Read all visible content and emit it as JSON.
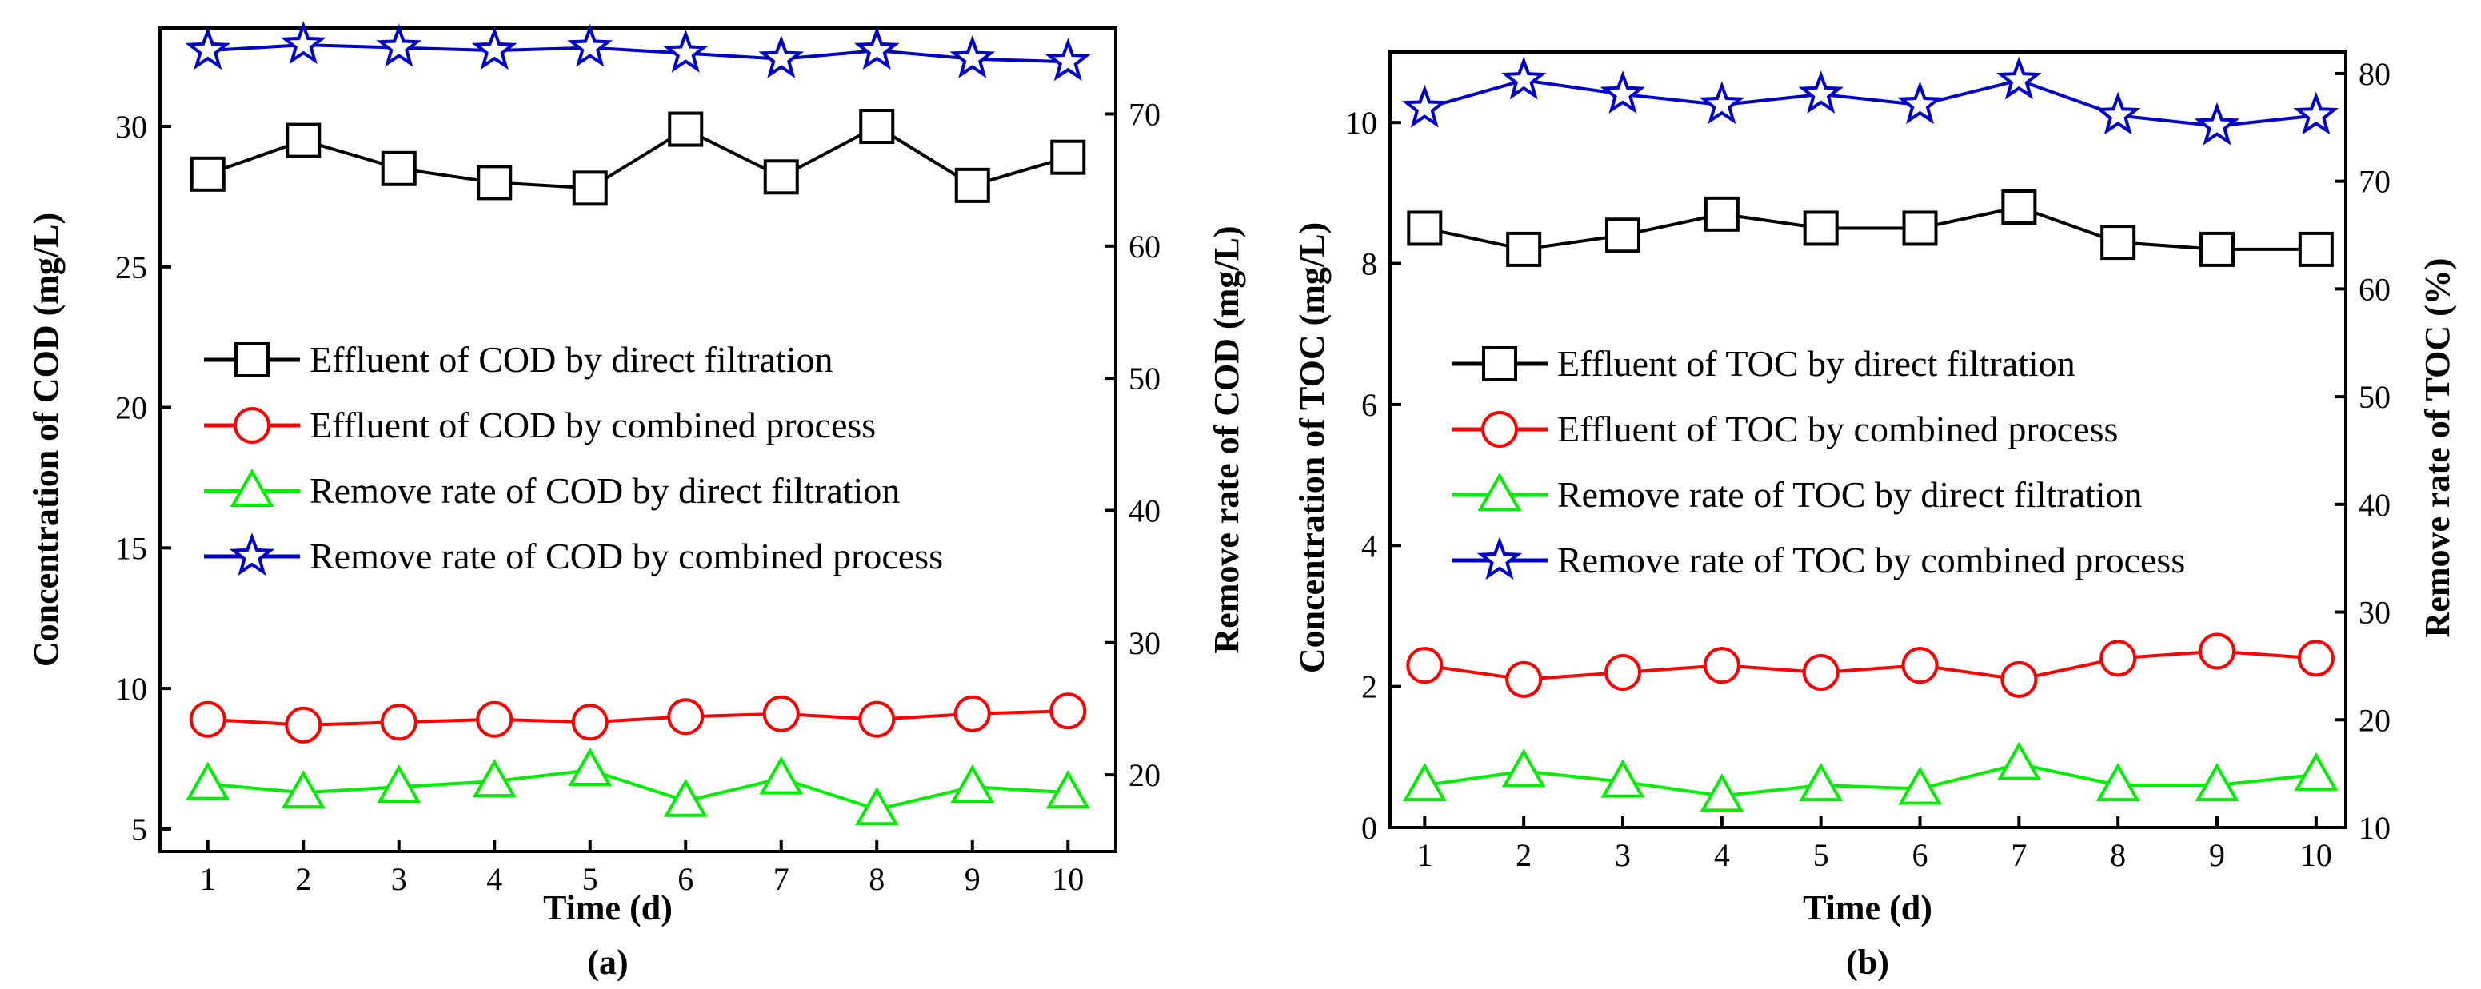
{
  "colors": {
    "direct_effluent": "#000000",
    "combined_effluent": "#ff0000",
    "direct_remove": "#00ee00",
    "combined_remove": "#0000cc"
  },
  "chart_data": [
    {
      "panel": "(a)",
      "type": "line",
      "xlabel": "Time (d)",
      "ylabel_left": "Concentration of COD (mg/L)",
      "ylabel_right": "Remove rate of COD (mg/L)",
      "x": [
        1,
        2,
        3,
        4,
        5,
        6,
        7,
        8,
        9,
        10
      ],
      "xlim": [
        0.5,
        10.5
      ],
      "ylim_left": [
        4.2,
        33.5
      ],
      "ylim_right": [
        14.2,
        76.5
      ],
      "left_ticks": [
        5,
        10,
        15,
        20,
        25,
        30
      ],
      "right_ticks": [
        20,
        30,
        40,
        50,
        60,
        70
      ],
      "series": [
        {
          "name": "Effluent of COD by direct filtration",
          "axis": "left",
          "marker": "square",
          "color_key": "direct_effluent",
          "values": [
            28.3,
            29.5,
            28.5,
            28.0,
            27.8,
            29.9,
            28.2,
            30.0,
            27.9,
            28.9
          ]
        },
        {
          "name": "Effluent of COD by combined process",
          "axis": "left",
          "marker": "circle",
          "color_key": "combined_effluent",
          "values": [
            8.9,
            8.7,
            8.8,
            8.9,
            8.8,
            9.0,
            9.1,
            8.9,
            9.1,
            9.2
          ]
        },
        {
          "name": "Remove rate of COD by direct filtration",
          "axis": "left",
          "marker": "triangle",
          "color_key": "direct_remove",
          "values": [
            6.6,
            6.3,
            6.5,
            6.7,
            7.1,
            6.0,
            6.8,
            5.7,
            6.5,
            6.3
          ]
        },
        {
          "name": "Remove rate of COD by combined process",
          "axis": "left",
          "marker": "star",
          "color_key": "combined_remove",
          "values": [
            32.7,
            32.9,
            32.8,
            32.7,
            32.8,
            32.6,
            32.4,
            32.7,
            32.4,
            32.3
          ]
        }
      ],
      "legend_position": "center-left"
    },
    {
      "panel": "(b)",
      "type": "line",
      "xlabel": "Time (d)",
      "ylabel_left": "Concentration of  TOC (mg/L)",
      "ylabel_right": "Remove rate of  TOC (%)",
      "x": [
        1,
        2,
        3,
        4,
        5,
        6,
        7,
        8,
        9,
        10
      ],
      "xlim": [
        0.65,
        10.3
      ],
      "ylim_left": [
        0,
        11
      ],
      "ylim_right": [
        10,
        82
      ],
      "left_ticks": [
        0,
        2,
        4,
        6,
        8,
        10
      ],
      "right_ticks": [
        10,
        20,
        30,
        40,
        50,
        60,
        70,
        80
      ],
      "series": [
        {
          "name": "Effluent of TOC by direct filtration",
          "axis": "left",
          "marker": "square",
          "color_key": "direct_effluent",
          "values": [
            8.5,
            8.2,
            8.4,
            8.7,
            8.5,
            8.5,
            8.8,
            8.3,
            8.2,
            8.2
          ]
        },
        {
          "name": "Effluent of TOC by combined process",
          "axis": "left",
          "marker": "circle",
          "color_key": "combined_effluent",
          "values": [
            2.3,
            2.1,
            2.2,
            2.3,
            2.2,
            2.3,
            2.1,
            2.4,
            2.5,
            2.4
          ]
        },
        {
          "name": "Remove rate of TOC by direct filtration",
          "axis": "left",
          "marker": "triangle",
          "color_key": "direct_remove",
          "values": [
            0.6,
            0.8,
            0.65,
            0.45,
            0.6,
            0.55,
            0.9,
            0.6,
            0.6,
            0.75
          ]
        },
        {
          "name": "Remove rate of TOC by combined process",
          "axis": "left",
          "marker": "star",
          "color_key": "combined_remove",
          "values": [
            10.2,
            10.6,
            10.4,
            10.25,
            10.4,
            10.25,
            10.6,
            10.1,
            9.95,
            10.1
          ]
        }
      ],
      "legend_position": "center-left"
    }
  ]
}
